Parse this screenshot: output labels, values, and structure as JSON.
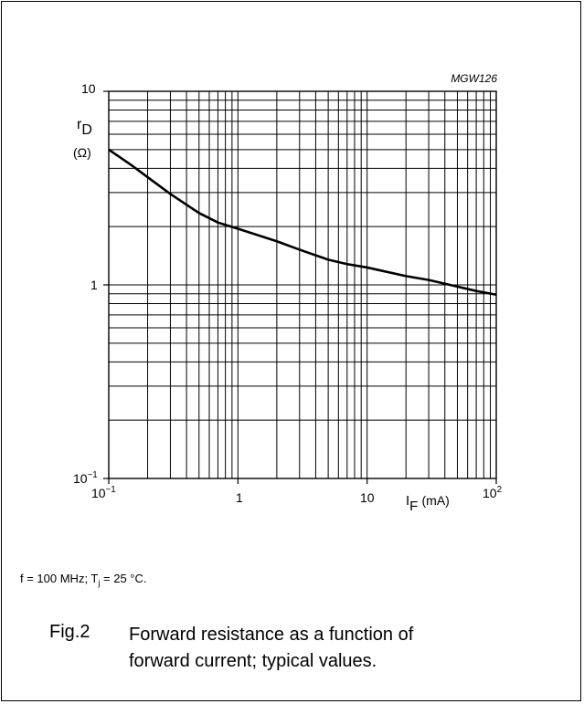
{
  "chart_data": {
    "type": "line",
    "code": "MGW126",
    "x_scale": "log",
    "y_scale": "log",
    "xlim": [
      0.1,
      100
    ],
    "ylim": [
      0.1,
      10
    ],
    "grid": true,
    "ylabel": {
      "main": "r",
      "sub": "D",
      "unit": "(Ω)"
    },
    "xlabel": {
      "main": "I",
      "sub": "F",
      "unit": "(mA)"
    },
    "x_ticks": [
      {
        "base": "10",
        "exp": "−1",
        "value": 0.1
      },
      {
        "base": "1",
        "exp": "",
        "value": 1
      },
      {
        "base": "10",
        "exp": "",
        "value": 10
      },
      {
        "base": "10",
        "exp": "2",
        "value": 100
      }
    ],
    "y_ticks": [
      {
        "base": "10",
        "exp": "",
        "value": 10
      },
      {
        "base": "1",
        "exp": "",
        "value": 1
      },
      {
        "base": "10",
        "exp": "−1",
        "value": 0.1
      }
    ],
    "series": [
      {
        "x": [
          0.1,
          0.15,
          0.2,
          0.3,
          0.5,
          0.7,
          1,
          2,
          3,
          5,
          7,
          10,
          20,
          30,
          50,
          70,
          100
        ],
        "y": [
          5.0,
          4.15,
          3.6,
          2.95,
          2.35,
          2.1,
          1.95,
          1.68,
          1.52,
          1.35,
          1.28,
          1.23,
          1.11,
          1.06,
          0.98,
          0.93,
          0.89
        ]
      }
    ]
  },
  "conditions": {
    "f_text": "f = 100 MHz; T",
    "tj_sub": "j",
    "tj_rest": " = 25 °C."
  },
  "caption": {
    "number": "Fig.2",
    "line1": "Forward resistance as a function of",
    "line2": "forward current; typical values."
  }
}
